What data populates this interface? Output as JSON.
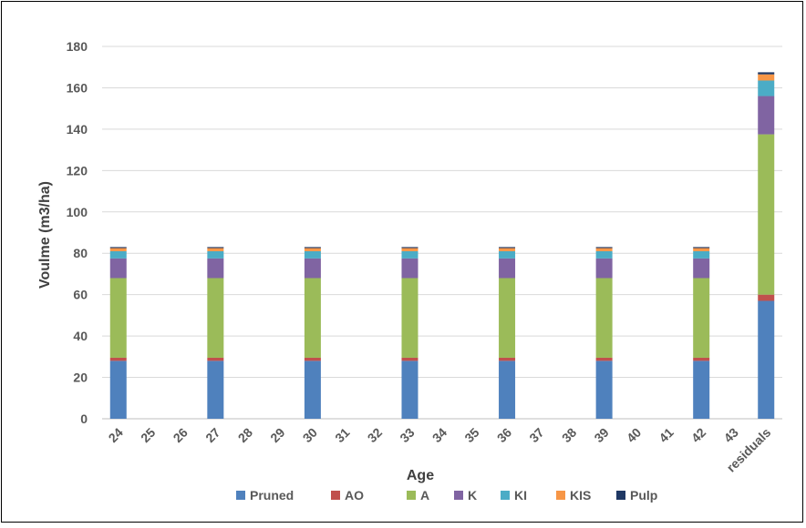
{
  "chart_data": {
    "type": "bar",
    "stacked": true,
    "title": "",
    "xlabel": "Age",
    "ylabel": "Voulme (m3/ha)",
    "ylim": [
      0,
      180
    ],
    "yticks": [
      0,
      20,
      40,
      60,
      80,
      100,
      120,
      140,
      160,
      180
    ],
    "grid": true,
    "legend_position": "bottom",
    "categories": [
      "24",
      "25",
      "26",
      "27",
      "28",
      "29",
      "30",
      "31",
      "32",
      "33",
      "34",
      "35",
      "36",
      "37",
      "38",
      "39",
      "40",
      "41",
      "42",
      "43",
      "residuals"
    ],
    "series": [
      {
        "name": "Pruned",
        "color": "#4f81bd",
        "values": [
          28,
          0,
          0,
          28,
          0,
          0,
          28,
          0,
          0,
          28,
          0,
          0,
          28,
          0,
          0,
          28,
          0,
          0,
          28,
          0,
          57
        ]
      },
      {
        "name": "AO",
        "color": "#c0504d",
        "values": [
          1.5,
          0,
          0,
          1.5,
          0,
          0,
          1.5,
          0,
          0,
          1.5,
          0,
          0,
          1.5,
          0,
          0,
          1.5,
          0,
          0,
          1.5,
          0,
          3
        ]
      },
      {
        "name": "A",
        "color": "#9bbb59",
        "values": [
          38.5,
          0,
          0,
          38.5,
          0,
          0,
          38.5,
          0,
          0,
          38.5,
          0,
          0,
          38.5,
          0,
          0,
          38.5,
          0,
          0,
          38.5,
          0,
          77.5
        ]
      },
      {
        "name": "K",
        "color": "#8064a2",
        "values": [
          9.5,
          0,
          0,
          9.5,
          0,
          0,
          9.5,
          0,
          0,
          9.5,
          0,
          0,
          9.5,
          0,
          0,
          9.5,
          0,
          0,
          9.5,
          0,
          18.5
        ]
      },
      {
        "name": "KI",
        "color": "#4bacc6",
        "values": [
          3.5,
          0,
          0,
          3.5,
          0,
          0,
          3.5,
          0,
          0,
          3.5,
          0,
          0,
          3.5,
          0,
          0,
          3.5,
          0,
          0,
          3.5,
          0,
          7.5
        ]
      },
      {
        "name": "KIS",
        "color": "#f79646",
        "values": [
          1.5,
          0,
          0,
          1.5,
          0,
          0,
          1.5,
          0,
          0,
          1.5,
          0,
          0,
          1.5,
          0,
          0,
          1.5,
          0,
          0,
          1.5,
          0,
          3
        ]
      },
      {
        "name": "Pulp",
        "color": "#1f3864",
        "values": [
          0.5,
          0,
          0,
          0.5,
          0,
          0,
          0.5,
          0,
          0,
          0.5,
          0,
          0,
          0.5,
          0,
          0,
          0.5,
          0,
          0,
          0.5,
          0,
          1
        ]
      }
    ]
  }
}
